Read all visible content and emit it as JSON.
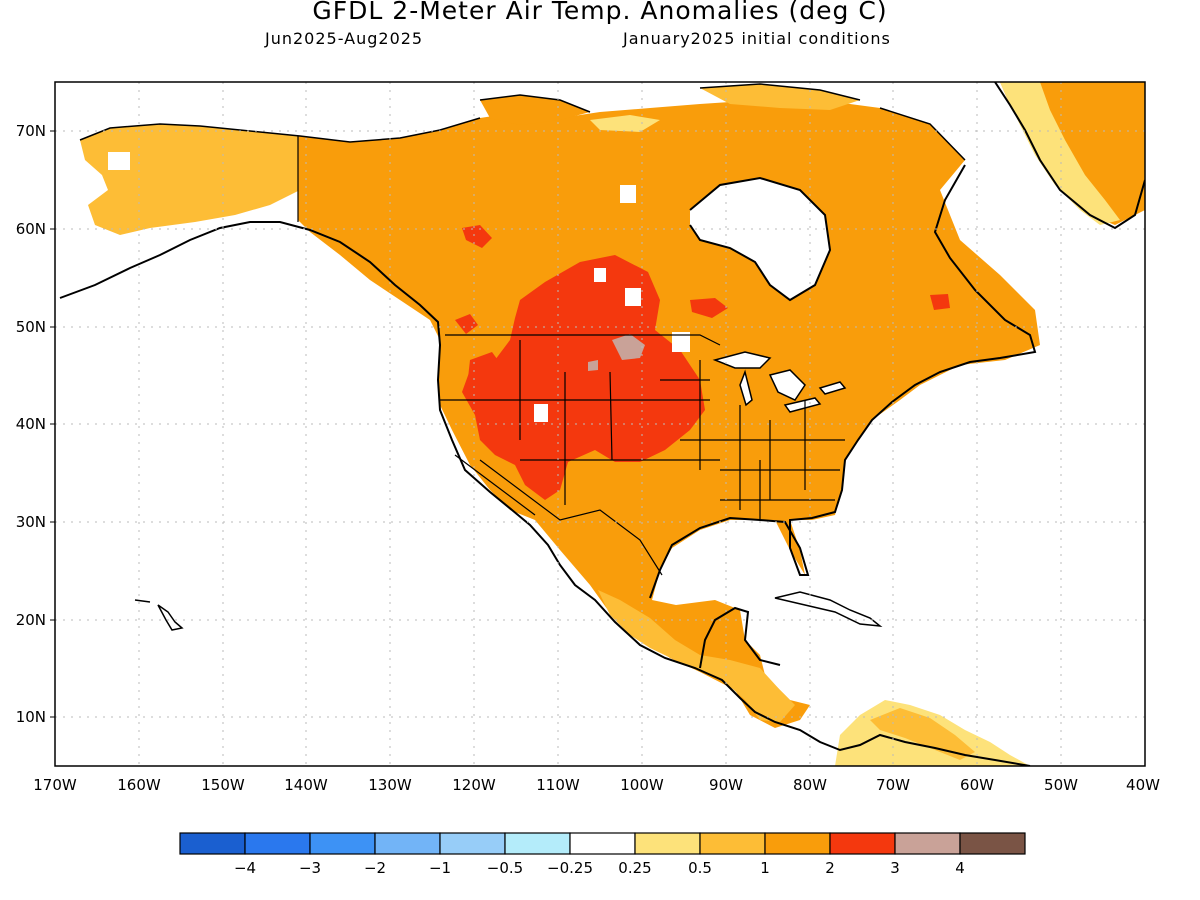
{
  "title": "GFDL 2-Meter Air Temp. Anomalies (deg C)",
  "period": "Jun2025-Aug2025",
  "initial_conditions": "January2025 initial conditions",
  "map": {
    "lon_labels": [
      "170W",
      "160W",
      "150W",
      "140W",
      "130W",
      "120W",
      "110W",
      "100W",
      "90W",
      "80W",
      "70W",
      "60W",
      "50W",
      "40W"
    ],
    "lat_labels": [
      "70N",
      "60N",
      "50N",
      "40N",
      "30N",
      "20N",
      "10N"
    ],
    "lon_range": [
      -170,
      -40
    ],
    "lat_range": [
      5,
      75
    ]
  },
  "colorbar": {
    "labels": [
      "-4",
      "-3",
      "-2",
      "-1",
      "-0.5",
      "-0.25",
      "0.25",
      "0.5",
      "1",
      "2",
      "3",
      "4"
    ],
    "colors": [
      "#1a5fd0",
      "#2a78ee",
      "#3d92f5",
      "#72b4f7",
      "#97cdf8",
      "#b4ecfa",
      "#ffffff",
      "#fde27a",
      "#fdbd36",
      "#f99d0b",
      "#f4380e",
      "#c9a298",
      "#7a5445"
    ]
  }
}
